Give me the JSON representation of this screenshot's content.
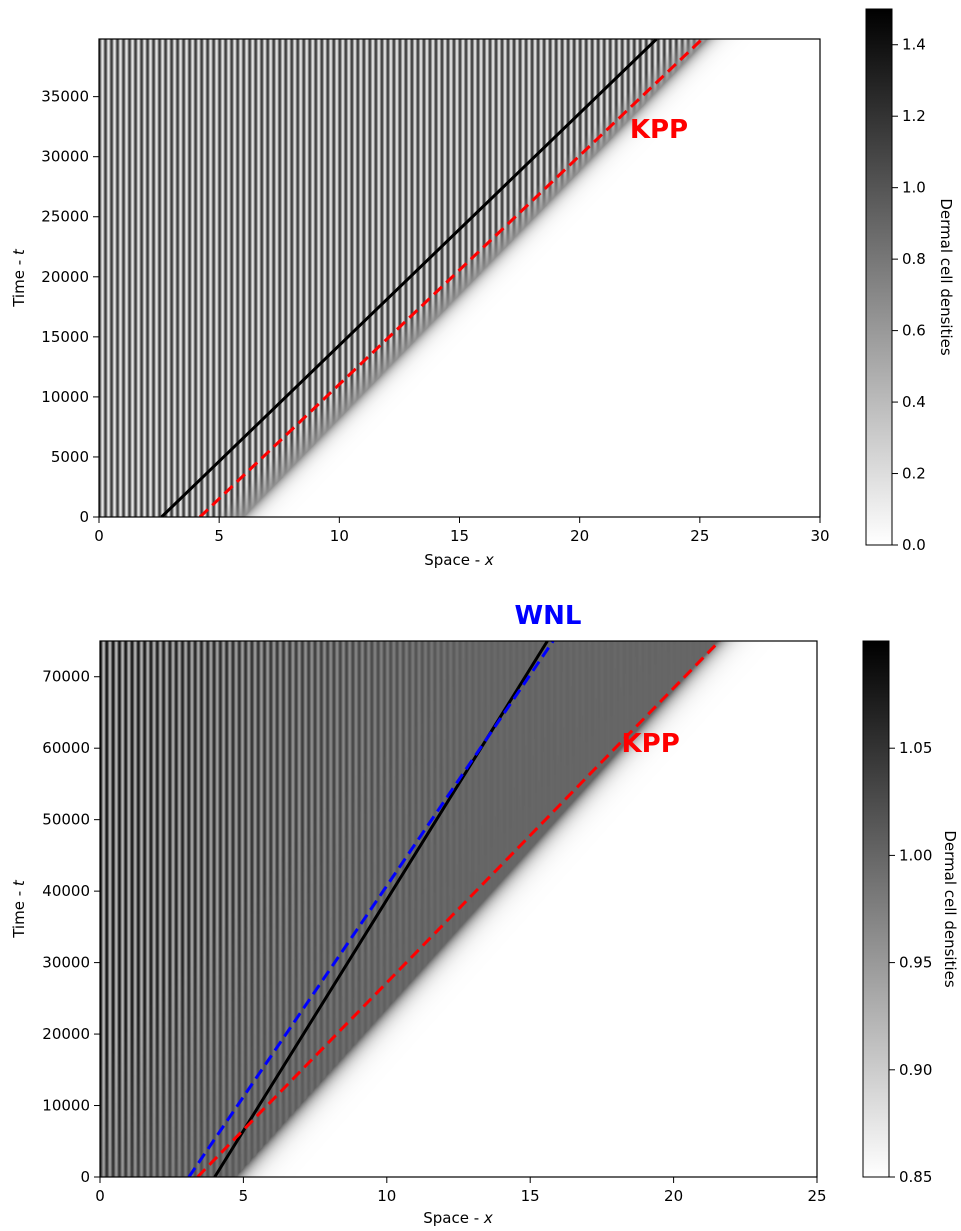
{
  "chart_data": [
    {
      "type": "heatmap",
      "xlabel_prefix": "Space - ",
      "xlabel_var": "x",
      "ylabel_prefix": "Time - ",
      "ylabel_var": "t",
      "xlim": [
        0,
        30
      ],
      "ylim": [
        0,
        39800
      ],
      "xticks": [
        0,
        5,
        10,
        15,
        20,
        25,
        30
      ],
      "yticks": [
        0,
        5000,
        10000,
        15000,
        20000,
        25000,
        30000,
        35000
      ],
      "colorbar": {
        "label": "Dermal cell densities",
        "colormap": "Greys",
        "range": [
          0.0,
          1.5
        ],
        "ticks": [
          "0.0",
          "0.2",
          "0.4",
          "0.6",
          "0.8",
          "1.0",
          "1.2",
          "1.4"
        ]
      },
      "front": {
        "x0": 6.0,
        "speed": 0.000485,
        "stripe_period": 0.25,
        "stripe_contrast": "high",
        "plateau_density": 0.6
      },
      "lines": [
        {
          "name": "numerical-front",
          "style": "solid",
          "color": "#000000",
          "points": [
            [
              2.6,
              0
            ],
            [
              23.2,
              39800
            ]
          ]
        },
        {
          "name": "kpp-front",
          "style": "dashed",
          "color": "#ff0000",
          "points": [
            [
              4.2,
              0
            ],
            [
              25.1,
              39800
            ]
          ]
        }
      ],
      "annotations": [
        {
          "text": "KPP",
          "color": "#ff0000",
          "x": 23.3,
          "y": 32200
        }
      ]
    },
    {
      "type": "heatmap",
      "xlabel_prefix": "Space - ",
      "xlabel_var": "x",
      "ylabel_prefix": "Time - ",
      "ylabel_var": "t",
      "xlim": [
        0,
        25
      ],
      "ylim": [
        0,
        75000
      ],
      "xticks": [
        0,
        5,
        10,
        15,
        20,
        25
      ],
      "yticks": [
        0,
        10000,
        20000,
        30000,
        40000,
        50000,
        60000,
        70000
      ],
      "colorbar": {
        "label": "Dermal cell densities",
        "colormap": "Greys",
        "range": [
          0.85,
          1.1
        ],
        "ticks": [
          "0.85",
          "0.90",
          "0.95",
          "1.00",
          "1.05"
        ]
      },
      "front": {
        "x0": 4.7,
        "speed": 0.000224,
        "stripe_period": 0.22,
        "stripe_contrast": "decaying",
        "plateau_density": 1.0
      },
      "lines": [
        {
          "name": "numerical-front",
          "style": "solid",
          "color": "#000000",
          "points": [
            [
              4.0,
              0
            ],
            [
              15.6,
              75000
            ]
          ]
        },
        {
          "name": "wnl-front",
          "style": "dashed",
          "color": "#0000ff",
          "points": [
            [
              3.1,
              0
            ],
            [
              15.8,
              75000
            ]
          ]
        },
        {
          "name": "kpp-front",
          "style": "dashed",
          "color": "#ff0000",
          "points": [
            [
              3.4,
              0
            ],
            [
              21.6,
              75000
            ]
          ]
        }
      ],
      "annotations": [
        {
          "text": "KPP",
          "color": "#ff0000",
          "x": 19.2,
          "y": 60500
        }
      ],
      "title": {
        "text": "WNL",
        "color": "#0000ff"
      }
    }
  ]
}
